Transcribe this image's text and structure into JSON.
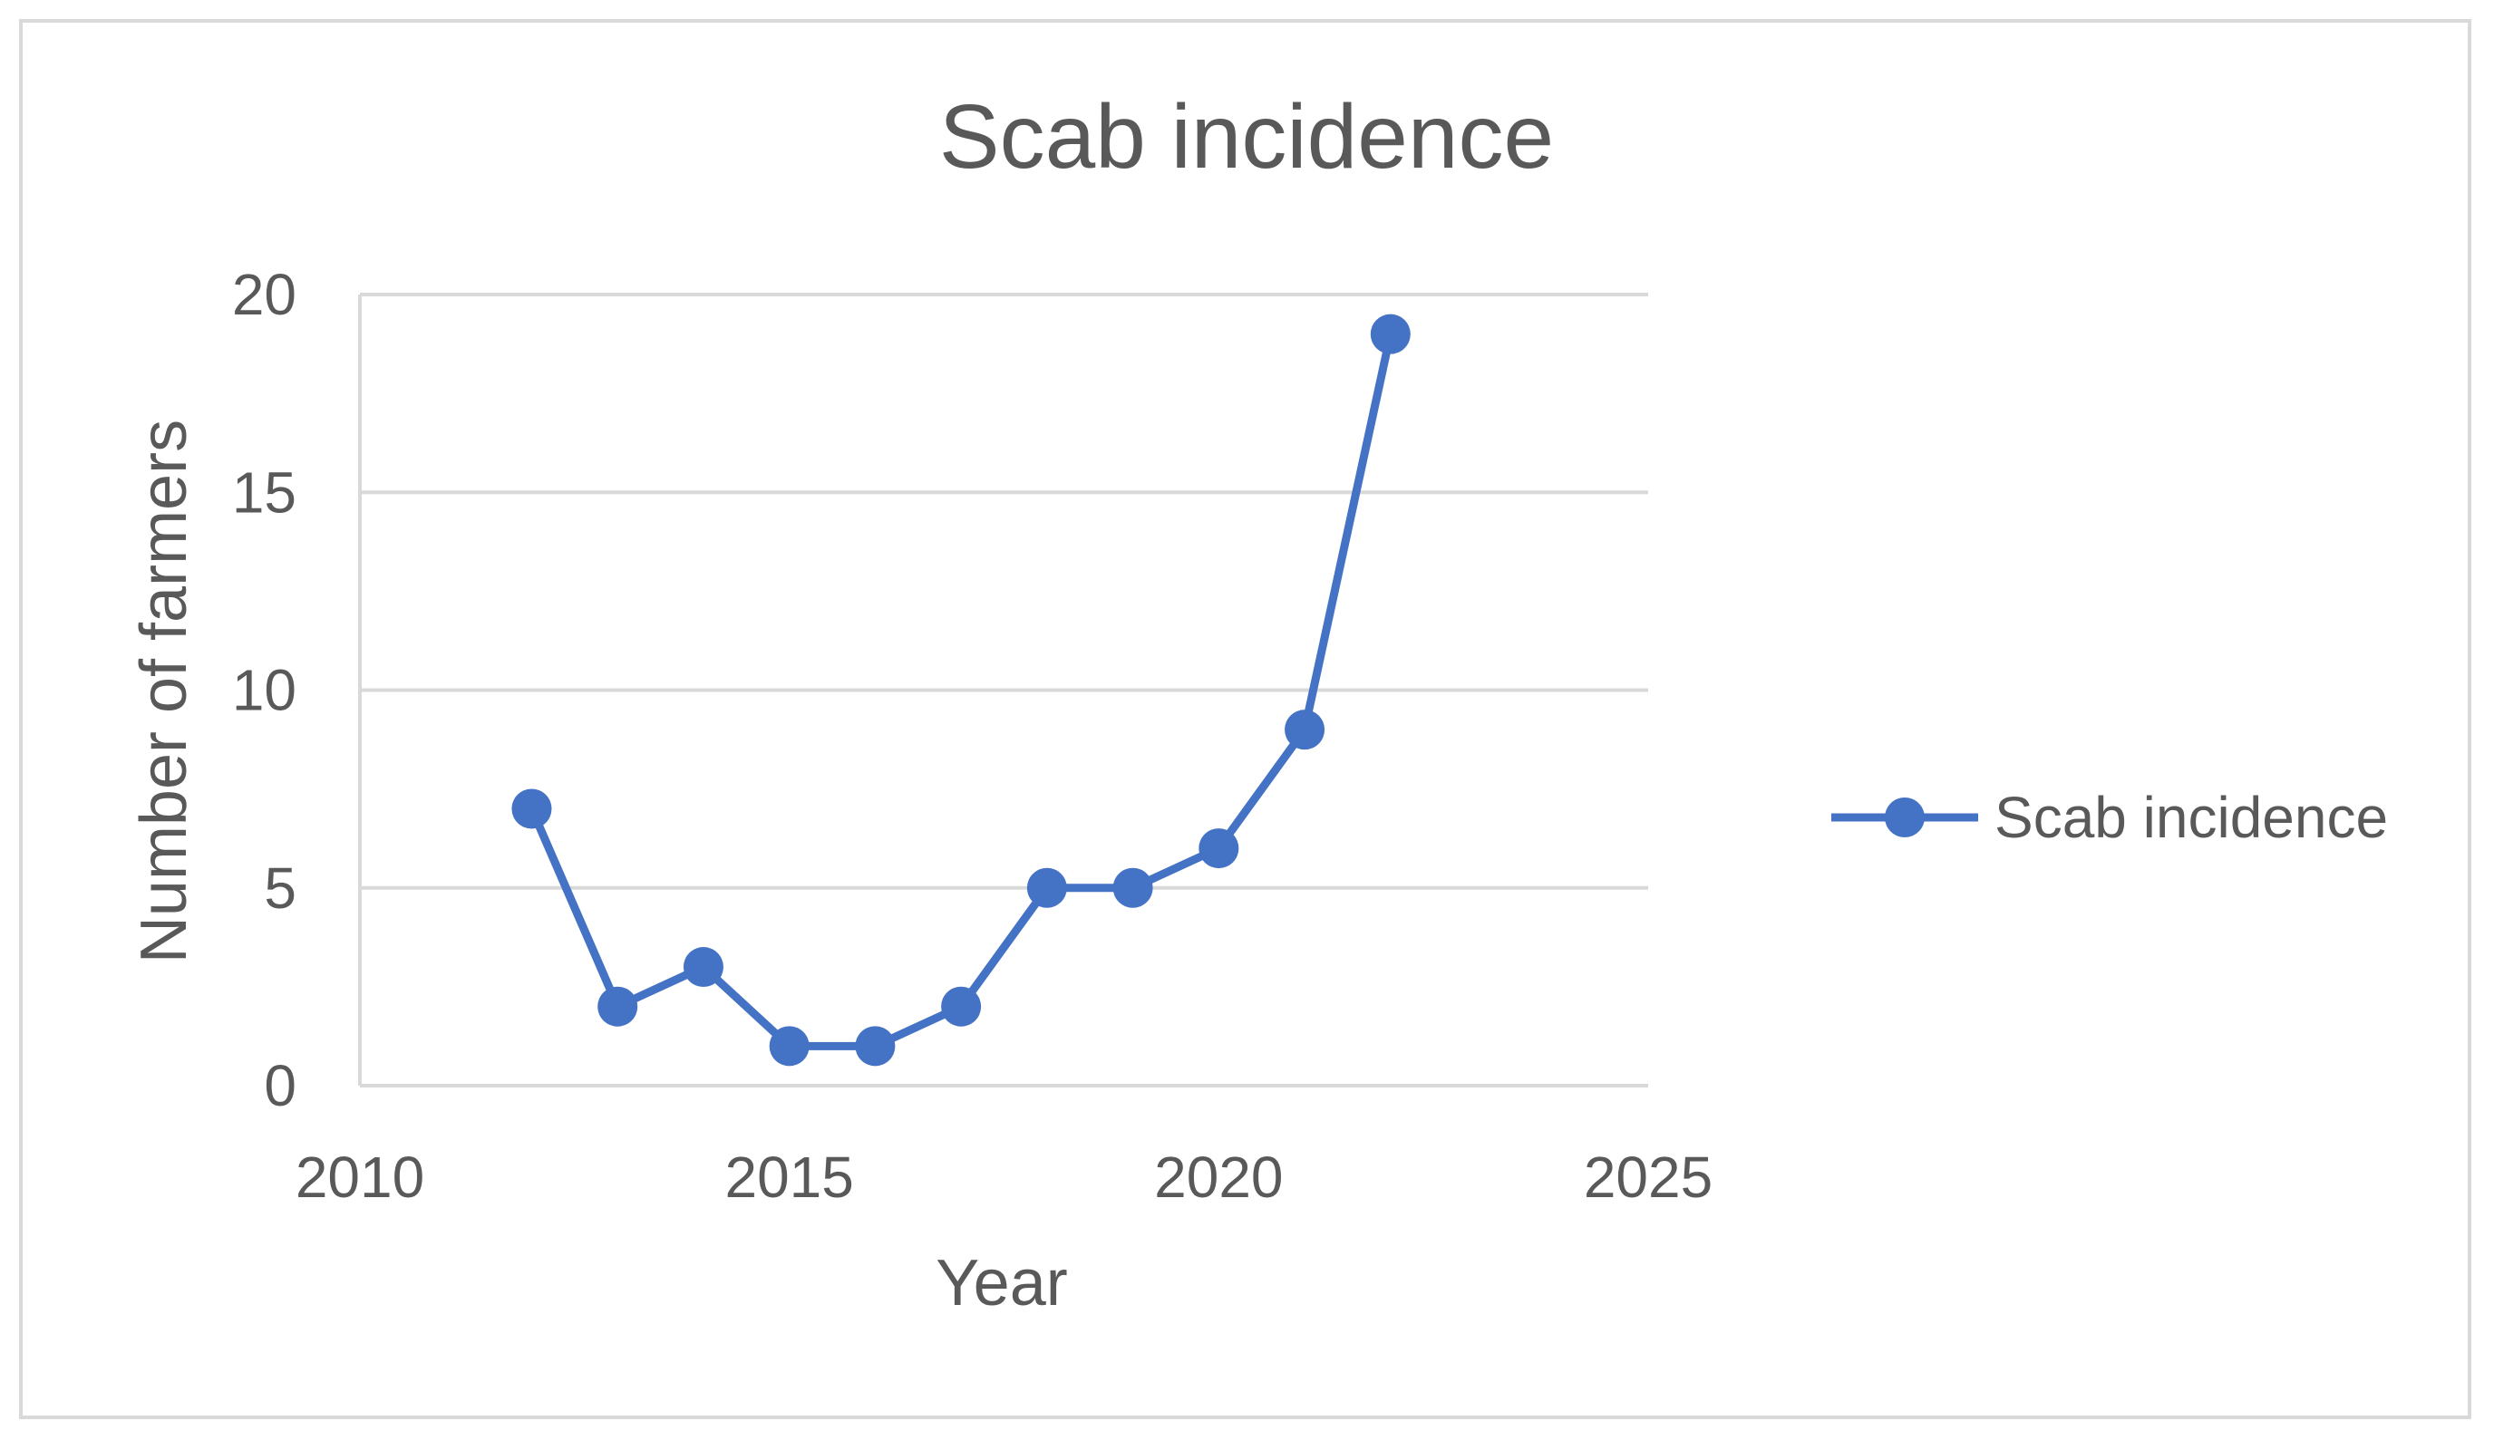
{
  "chart_data": {
    "type": "line",
    "title": "Scab incidence",
    "xlabel": "Year",
    "ylabel": "Number of farmers",
    "xlim": [
      2010,
      2025
    ],
    "ylim": [
      0,
      20
    ],
    "xticks": [
      "2010",
      "2015",
      "2020",
      "2025"
    ],
    "yticks": [
      "0",
      "5",
      "10",
      "15",
      "20"
    ],
    "grid": "horizontal",
    "legend_position": "right",
    "series": [
      {
        "name": "Scab incidence",
        "color": "#4472c4",
        "marker": "circle",
        "x": [
          2012,
          2013,
          2014,
          2015,
          2016,
          2017,
          2018,
          2019,
          2020,
          2021,
          2022
        ],
        "y": [
          7,
          2,
          3,
          1,
          1,
          2,
          5,
          5,
          6,
          9,
          19
        ]
      }
    ]
  }
}
